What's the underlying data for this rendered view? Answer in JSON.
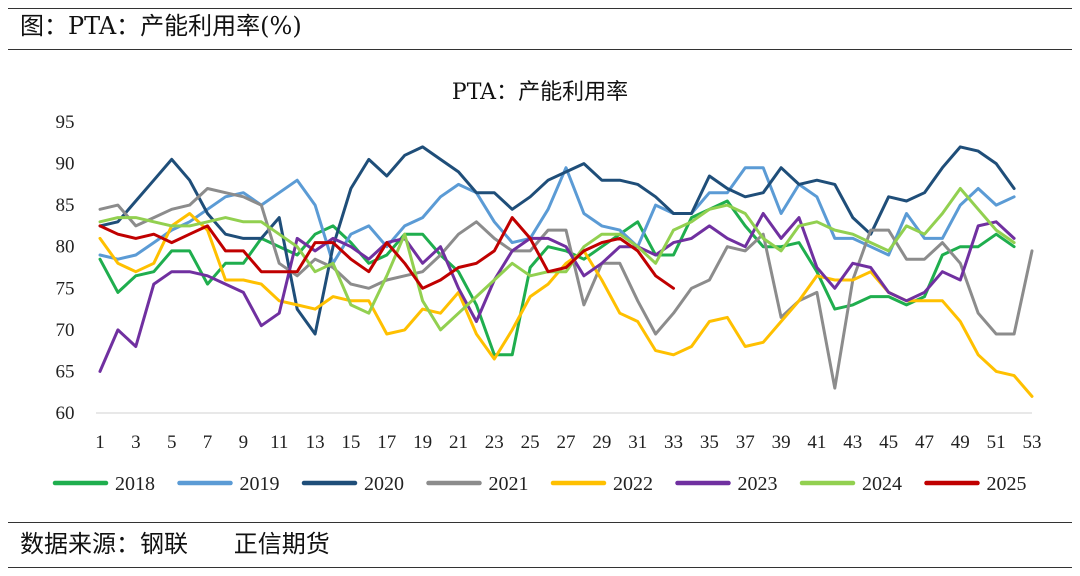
{
  "header": {
    "caption": "图：PTA：产能利用率(%)"
  },
  "footer": {
    "source": "数据来源：钢联      正信期货"
  },
  "colors": {
    "2018": "#1fae4e",
    "2019": "#5b9bd5",
    "2020": "#1f4e79",
    "2021": "#8c8c8c",
    "2022": "#ffc000",
    "2023": "#7030a0",
    "2024": "#92d050",
    "2025": "#c00000"
  },
  "chart_data": {
    "type": "line",
    "title": "PTA：产能利用率",
    "xlabel": "",
    "ylabel": "",
    "ylim": [
      60,
      95
    ],
    "yticks": [
      60,
      65,
      70,
      75,
      80,
      85,
      90,
      95
    ],
    "xlim": [
      1,
      53
    ],
    "xticks": [
      1,
      3,
      5,
      7,
      9,
      11,
      13,
      15,
      17,
      19,
      21,
      23,
      25,
      27,
      29,
      31,
      33,
      35,
      37,
      39,
      41,
      43,
      45,
      47,
      49,
      51,
      53
    ],
    "grid": false,
    "legend": "bottom",
    "series": [
      {
        "name": "2018",
        "values": [
          78.5,
          74.5,
          76.5,
          77,
          79.5,
          79.5,
          75.5,
          78,
          78,
          81,
          80,
          79,
          81.5,
          82.5,
          80.5,
          78,
          79,
          81.5,
          81.5,
          79,
          77,
          73,
          67,
          67,
          77.5,
          80,
          79.5,
          78.5,
          80,
          81.5,
          83,
          79,
          79,
          83.5,
          84.5,
          85.5,
          82.5,
          80,
          80,
          80.5,
          77,
          72.5,
          73,
          74,
          74,
          73,
          74,
          79,
          80,
          80,
          81.5,
          80
        ]
      },
      {
        "name": "2019",
        "values": [
          79,
          78.5,
          79,
          80.5,
          82,
          83,
          84.5,
          86,
          86.5,
          85,
          86.5,
          88,
          85,
          78,
          81.5,
          82.5,
          80,
          82.5,
          83.5,
          86,
          87.5,
          86.5,
          83,
          80.5,
          81,
          84.5,
          89.5,
          84,
          82.5,
          82,
          80,
          85,
          84,
          84,
          86.5,
          86.5,
          89.5,
          89.5,
          84,
          87.5,
          86,
          81,
          81,
          80,
          79,
          84,
          81,
          81,
          85,
          87,
          85,
          86
        ]
      },
      {
        "name": "2020",
        "values": [
          82.5,
          83,
          85.5,
          88,
          90.5,
          88,
          84,
          81.5,
          81,
          81,
          83.5,
          72.5,
          69.5,
          80,
          87,
          90.5,
          88.5,
          91,
          92,
          90.5,
          89,
          86.5,
          86.5,
          84.5,
          86,
          88,
          89,
          90,
          88,
          88,
          87.5,
          86,
          84,
          84,
          88.5,
          87,
          86,
          86.5,
          89.5,
          87.5,
          88,
          87.5,
          83.5,
          81.5,
          86,
          85.5,
          86.5,
          89.5,
          92,
          91.5,
          90,
          87
        ]
      },
      {
        "name": "2021",
        "values": [
          84.5,
          85,
          82.5,
          83.5,
          84.5,
          85,
          87,
          86.5,
          86,
          85,
          78,
          76.5,
          78.5,
          77.5,
          75.5,
          75,
          76,
          76.5,
          77,
          79,
          81.5,
          83,
          81,
          79.5,
          79.5,
          82,
          82,
          73,
          78,
          78,
          73.5,
          69.5,
          72,
          75,
          76,
          80,
          79.5,
          81.5,
          71.5,
          73.5,
          74.5,
          63,
          76,
          82,
          82,
          78.5,
          78.5,
          80.5,
          78,
          72,
          69.5,
          69.5,
          79.5
        ]
      },
      {
        "name": "2022",
        "values": [
          81,
          78,
          77,
          78,
          82.5,
          84,
          82,
          76,
          76,
          75.5,
          73.5,
          73,
          72.5,
          74,
          73.5,
          73.5,
          69.5,
          70,
          72.5,
          72,
          74.5,
          69.5,
          66.5,
          70,
          74,
          75.5,
          78,
          79.5,
          76,
          72,
          71,
          67.5,
          67,
          68,
          71,
          71.5,
          68,
          68.5,
          71,
          73.5,
          76.5,
          76,
          76,
          77,
          74.5,
          73.5,
          73.5,
          73.5,
          71,
          67,
          65,
          64.5,
          62
        ]
      },
      {
        "name": "2023",
        "values": [
          65,
          70,
          68,
          75.5,
          77,
          77,
          76.5,
          75.5,
          74.5,
          70.5,
          72,
          81,
          79.5,
          81,
          80,
          78.5,
          80.5,
          81,
          78,
          80,
          75,
          71,
          76,
          79.5,
          81,
          81,
          80,
          76.5,
          78,
          80,
          80,
          79,
          80.5,
          81,
          82.5,
          81,
          80,
          84,
          81,
          83.5,
          77.5,
          75,
          78,
          77.5,
          74.5,
          73.5,
          74.5,
          77,
          76,
          82.5,
          83,
          81
        ]
      },
      {
        "name": "2024",
        "values": [
          83,
          83.5,
          83.5,
          83,
          82.5,
          82.5,
          83,
          83.5,
          83,
          83,
          81.5,
          80,
          77,
          78,
          73,
          72,
          76.5,
          81.5,
          73.5,
          70,
          72,
          74,
          76,
          78,
          76.5,
          77,
          77,
          80,
          81.5,
          81.5,
          80,
          78,
          82,
          83,
          84.5,
          85,
          84,
          81,
          79.5,
          82.5,
          83,
          82,
          81.5,
          80.5,
          79.5,
          82.5,
          81.5,
          84,
          87,
          84.5,
          82,
          80.5
        ]
      },
      {
        "name": "2025",
        "values": [
          82.5,
          81.5,
          81,
          81.5,
          80.5,
          81.5,
          82.5,
          79.5,
          79.5,
          77,
          77,
          77,
          80.5,
          80.5,
          78.5,
          77,
          80.5,
          78,
          75,
          76,
          77.5,
          78,
          79.5,
          83.5,
          81,
          77,
          77.5,
          79.5,
          80.5,
          81,
          79.5,
          76.5,
          75
        ]
      }
    ]
  }
}
